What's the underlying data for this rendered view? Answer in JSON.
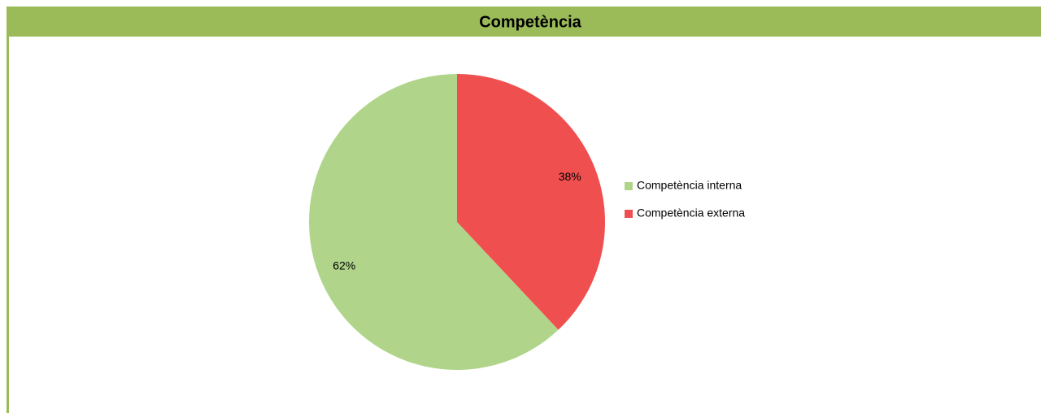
{
  "chart_data": {
    "type": "pie",
    "title": "Competència",
    "categories": [
      "Competència interna",
      "Competència externa"
    ],
    "values": [
      62,
      38
    ],
    "value_labels": [
      "62%",
      "38%"
    ],
    "colors": [
      "#b0d58a",
      "#f04f4f"
    ],
    "header_color": "#9bbb59",
    "legend": "right"
  }
}
